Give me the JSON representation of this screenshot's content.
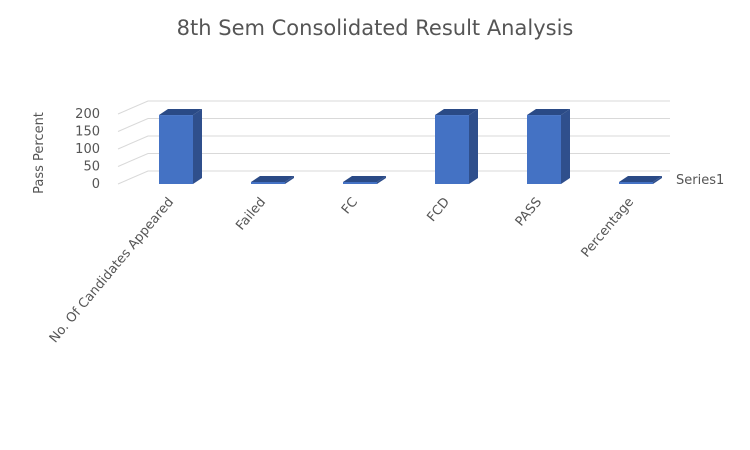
{
  "chart_data": {
    "type": "bar",
    "title": "8th Sem Consolidated Result Analysis",
    "ylabel": "Pass Percent",
    "xlabel": "",
    "categories": [
      "No. Of Candidates Appeared",
      "Failed",
      "FC",
      "FCD",
      "PASS",
      "Percentage"
    ],
    "series": [
      {
        "name": "Series1",
        "values": [
          197,
          0,
          0,
          197,
          197,
          1
        ]
      }
    ],
    "yticks": [
      "0",
      "50",
      "100",
      "150",
      "200"
    ],
    "ylim": [
      0,
      200
    ],
    "grid": true,
    "legend": "right",
    "style": "3d-column",
    "colors": {
      "front": "#4472c4",
      "side": "#2f4f8c",
      "top": "#2a4a86"
    }
  }
}
